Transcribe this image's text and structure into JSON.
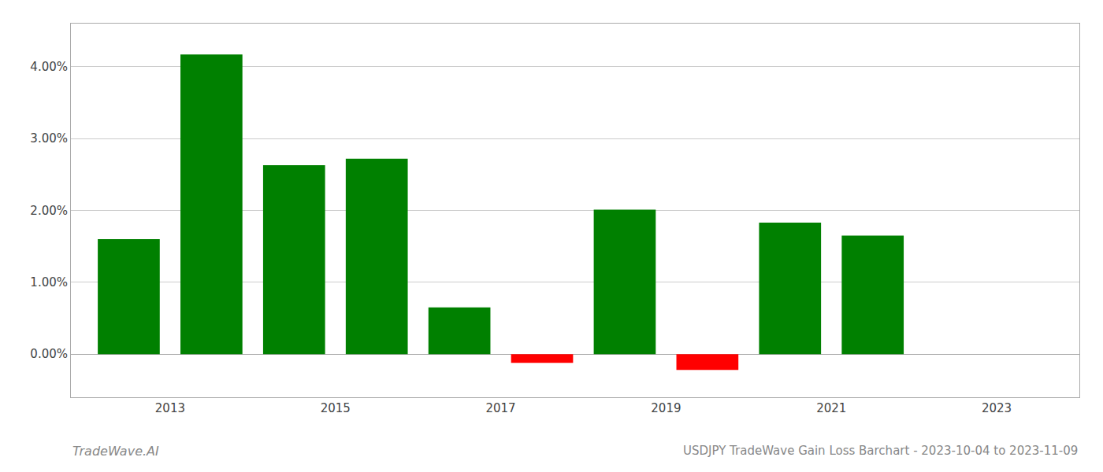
{
  "chart_data": {
    "type": "bar",
    "title": "USDJPY TradeWave Gain Loss Barchart - 2023-10-04 to 2023-11-09",
    "annotations": [
      "TradeWave.AI"
    ],
    "x": [
      2012.5,
      2013.5,
      2014.5,
      2015.5,
      2016.5,
      2017.5,
      2018.5,
      2019.5,
      2020.5,
      2021.5
    ],
    "values": [
      0.016,
      0.0417,
      0.0263,
      0.0272,
      0.0065,
      -0.0012,
      0.0201,
      -0.0022,
      0.0183,
      0.0165
    ],
    "colors": [
      "#008000",
      "#008000",
      "#008000",
      "#008000",
      "#008000",
      "#ff0000",
      "#008000",
      "#ff0000",
      "#008000",
      "#008000"
    ],
    "xlim": [
      2011.8,
      2024.0
    ],
    "xticks": [
      2013,
      2015,
      2017,
      2019,
      2021,
      2023
    ],
    "ylim": [
      -0.006,
      0.046
    ],
    "yticks": [
      {
        "value": 0,
        "label": "0.00%"
      },
      {
        "value": 0.01,
        "label": "1.00%"
      },
      {
        "value": 0.02,
        "label": "2.00%"
      },
      {
        "value": 0.03,
        "label": "3.00%"
      },
      {
        "value": 0.04,
        "label": "4.00%"
      }
    ],
    "grid": true
  }
}
